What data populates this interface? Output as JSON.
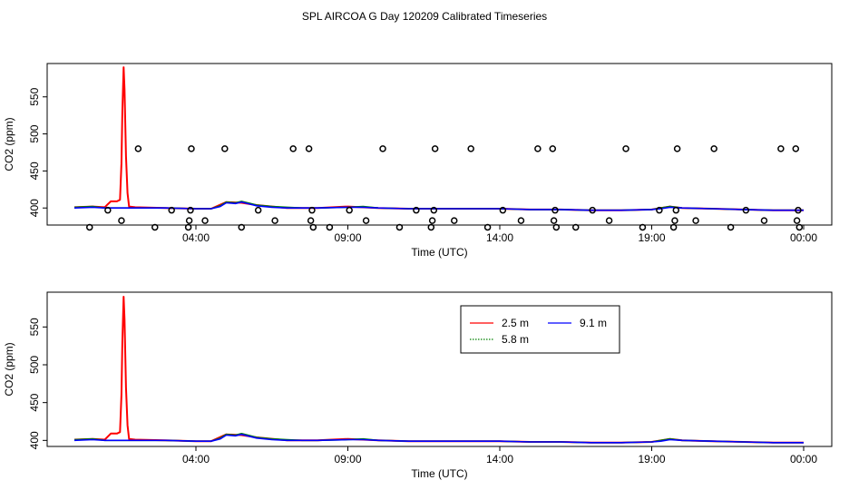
{
  "figure": {
    "title": "SPL AIRCOA G  Day 120209  Calibrated Timeseries"
  },
  "chart_data": [
    {
      "type": "line",
      "name": "top-panel",
      "xlabel": "Time (UTC)",
      "ylabel": "CO2 (ppm)",
      "xlim": [
        0,
        24
      ],
      "ylim": [
        377,
        595
      ],
      "x_tick_values": [
        4,
        9,
        14,
        19,
        24
      ],
      "x_tick_labels": [
        "04:00",
        "09:00",
        "14:00",
        "19:00",
        "00:00"
      ],
      "y_ticks": [
        400,
        450,
        500,
        550
      ],
      "series": [
        {
          "color": "#ff0000",
          "x": [
            0,
            0.6,
            1.0,
            1.1,
            1.2,
            1.4,
            1.5,
            1.55,
            1.58,
            1.62,
            1.65,
            1.7,
            1.75,
            1.8,
            2.0,
            3.0,
            4.0,
            4.5,
            5.0,
            5.5,
            6.0,
            7.0,
            8.0,
            9.0,
            10.0,
            11.0,
            12.0,
            13.0,
            14.0,
            15.0,
            16.0,
            17.0,
            18.0,
            19.0,
            19.3,
            19.6,
            20.0,
            21.0,
            22.0,
            23.0,
            24.0
          ],
          "y": [
            401,
            402,
            401,
            405,
            409,
            409,
            411,
            460,
            530,
            590,
            560,
            470,
            420,
            402,
            401,
            400,
            399,
            399,
            408,
            407,
            404,
            400,
            400,
            402,
            400,
            399,
            399,
            399,
            399,
            398,
            398,
            397,
            397,
            398,
            400,
            402,
            400,
            399,
            398,
            397,
            397
          ]
        },
        {
          "color": "#008000",
          "x": [
            0,
            0.6,
            1.0,
            2.0,
            3.0,
            4.0,
            4.5,
            4.8,
            5.0,
            5.3,
            5.5,
            5.8,
            6.0,
            6.5,
            7.0,
            7.5,
            8.0,
            9.0,
            9.5,
            10.0,
            11.0,
            12.0,
            13.0,
            14.0,
            15.0,
            16.0,
            17.0,
            18.0,
            19.0,
            19.3,
            19.6,
            20.0,
            21.0,
            22.0,
            23.0,
            24.0
          ],
          "y": [
            401,
            402,
            400,
            400,
            400,
            399,
            399,
            403,
            408,
            407,
            409,
            406,
            404,
            402,
            401,
            400,
            400,
            401,
            402,
            400,
            399,
            399,
            399,
            399,
            398,
            398,
            397,
            397,
            398,
            400,
            402,
            400,
            399,
            398,
            397,
            397
          ]
        },
        {
          "color": "#0000ff",
          "x": [
            0,
            0.6,
            1.0,
            2.0,
            3.0,
            4.0,
            4.5,
            4.8,
            5.0,
            5.3,
            5.5,
            5.8,
            6.0,
            6.5,
            7.0,
            7.5,
            8.0,
            9.0,
            9.5,
            10.0,
            11.0,
            12.0,
            13.0,
            14.0,
            15.0,
            16.0,
            17.0,
            18.0,
            19.0,
            19.3,
            19.6,
            20.0,
            21.0,
            22.0,
            23.0,
            24.0
          ],
          "y": [
            400,
            401,
            400,
            400,
            400,
            399,
            399,
            402,
            407,
            406,
            408,
            405,
            403,
            401,
            400,
            400,
            400,
            401,
            401,
            400,
            399,
            399,
            399,
            399,
            398,
            398,
            397,
            397,
            398,
            399,
            401,
            400,
            399,
            398,
            397,
            397
          ]
        }
      ],
      "markers": {
        "x": [
          0.5,
          1.1,
          1.55,
          2.1,
          2.65,
          3.2,
          3.75,
          3.78,
          3.82,
          3.85,
          4.3,
          4.95,
          5.5,
          6.05,
          6.6,
          7.2,
          7.72,
          7.78,
          7.82,
          7.86,
          8.4,
          9.05,
          9.6,
          10.15,
          10.7,
          11.25,
          11.74,
          11.78,
          11.83,
          11.87,
          12.5,
          13.05,
          13.6,
          14.1,
          14.7,
          15.25,
          15.74,
          15.78,
          15.82,
          15.86,
          16.5,
          17.05,
          17.6,
          18.15,
          18.7,
          19.25,
          19.72,
          19.76,
          19.8,
          19.84,
          20.45,
          21.05,
          21.6,
          22.1,
          22.7,
          23.25,
          23.74,
          23.78,
          23.82,
          23.86
        ],
        "y": [
          374,
          397,
          383,
          480,
          374,
          397,
          374,
          383,
          397,
          480,
          383,
          480,
          374,
          397,
          383,
          480,
          480,
          383,
          397,
          374,
          374,
          397,
          383,
          480,
          374,
          397,
          374,
          383,
          397,
          480,
          383,
          480,
          374,
          397,
          383,
          480,
          480,
          383,
          397,
          374,
          374,
          397,
          383,
          480,
          374,
          397,
          374,
          383,
          397,
          480,
          383,
          480,
          374,
          397,
          383,
          480,
          480,
          383,
          397,
          374
        ]
      }
    },
    {
      "type": "line",
      "name": "bottom-panel",
      "xlabel": "Time (UTC)",
      "ylabel": "CO2 (ppm)",
      "xlim": [
        0,
        24
      ],
      "ylim": [
        392,
        596
      ],
      "x_tick_values": [
        4,
        9,
        14,
        19,
        24
      ],
      "x_tick_labels": [
        "04:00",
        "09:00",
        "14:00",
        "19:00",
        "00:00"
      ],
      "y_ticks": [
        400,
        450,
        500,
        550
      ],
      "legend": {
        "position": "top-center",
        "entries": [
          {
            "label": "2.5 m",
            "color": "#ff0000",
            "dash": "solid"
          },
          {
            "label": "9.1 m",
            "color": "#0000ff",
            "dash": "solid"
          },
          {
            "label": "5.8 m",
            "color": "#008000",
            "dash": "dotted"
          }
        ]
      },
      "series": [
        {
          "color": "#ff0000",
          "x": [
            0,
            0.6,
            1.0,
            1.1,
            1.2,
            1.4,
            1.5,
            1.55,
            1.58,
            1.62,
            1.65,
            1.7,
            1.75,
            1.8,
            2.0,
            3.0,
            4.0,
            4.5,
            5.0,
            5.5,
            6.0,
            7.0,
            8.0,
            9.0,
            10.0,
            11.0,
            12.0,
            13.0,
            14.0,
            15.0,
            16.0,
            17.0,
            18.0,
            19.0,
            19.3,
            19.6,
            20.0,
            21.0,
            22.0,
            23.0,
            24.0
          ],
          "y": [
            401,
            402,
            401,
            405,
            409,
            409,
            411,
            460,
            530,
            590,
            560,
            470,
            420,
            402,
            401,
            400,
            399,
            399,
            408,
            407,
            404,
            400,
            400,
            402,
            400,
            399,
            399,
            399,
            399,
            398,
            398,
            397,
            397,
            398,
            400,
            402,
            400,
            399,
            398,
            397,
            397
          ]
        },
        {
          "color": "#008000",
          "x": [
            0,
            0.6,
            1.0,
            2.0,
            3.0,
            4.0,
            4.5,
            4.8,
            5.0,
            5.3,
            5.5,
            5.8,
            6.0,
            6.5,
            7.0,
            7.5,
            8.0,
            9.0,
            9.5,
            10.0,
            11.0,
            12.0,
            13.0,
            14.0,
            15.0,
            16.0,
            17.0,
            18.0,
            19.0,
            19.3,
            19.6,
            20.0,
            21.0,
            22.0,
            23.0,
            24.0
          ],
          "y": [
            401,
            402,
            400,
            400,
            400,
            399,
            399,
            403,
            408,
            407,
            409,
            406,
            404,
            402,
            401,
            400,
            400,
            401,
            402,
            400,
            399,
            399,
            399,
            399,
            398,
            398,
            397,
            397,
            398,
            400,
            402,
            400,
            399,
            398,
            397,
            397
          ]
        },
        {
          "color": "#0000ff",
          "x": [
            0,
            0.6,
            1.0,
            2.0,
            3.0,
            4.0,
            4.5,
            4.8,
            5.0,
            5.3,
            5.5,
            5.8,
            6.0,
            6.5,
            7.0,
            7.5,
            8.0,
            9.0,
            9.5,
            10.0,
            11.0,
            12.0,
            13.0,
            14.0,
            15.0,
            16.0,
            17.0,
            18.0,
            19.0,
            19.3,
            19.6,
            20.0,
            21.0,
            22.0,
            23.0,
            24.0
          ],
          "y": [
            400,
            401,
            400,
            400,
            400,
            399,
            399,
            402,
            407,
            406,
            408,
            405,
            403,
            401,
            400,
            400,
            400,
            401,
            401,
            400,
            399,
            399,
            399,
            399,
            398,
            398,
            397,
            397,
            398,
            399,
            401,
            400,
            399,
            398,
            397,
            397
          ]
        }
      ]
    }
  ]
}
